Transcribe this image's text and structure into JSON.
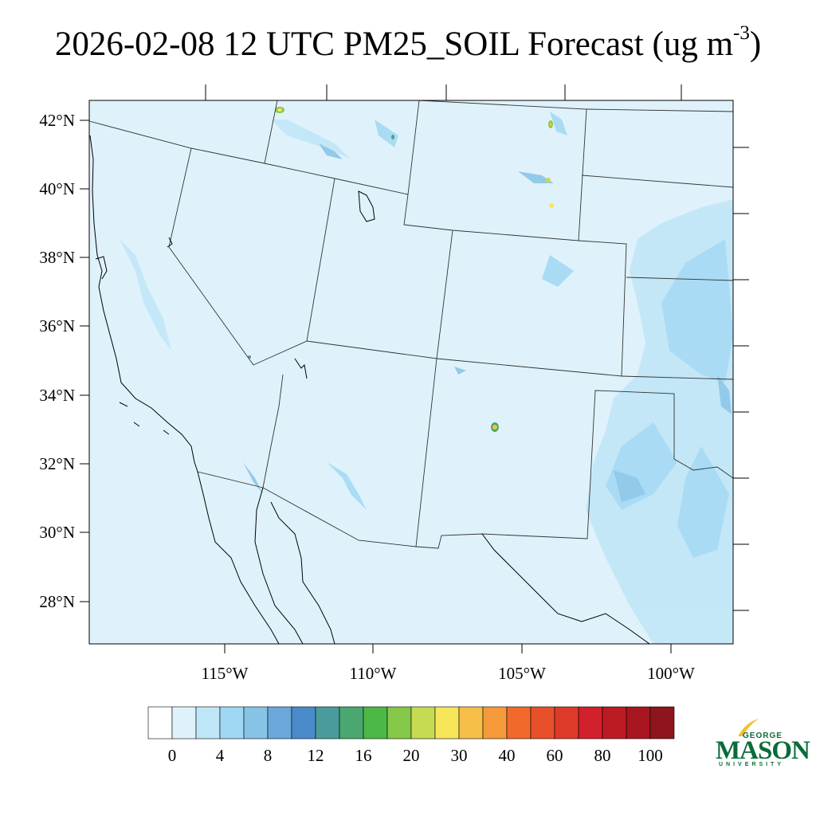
{
  "title": {
    "text": "2026-02-08 12 UTC PM25_SOIL Forecast (ug m",
    "sup": "-3",
    "close": ")"
  },
  "map": {
    "lat_labels": [
      "42°N",
      "40°N",
      "38°N",
      "36°N",
      "34°N",
      "32°N",
      "30°N",
      "28°N"
    ],
    "lon_labels": [
      "115°W",
      "110°W",
      "105°W",
      "100°W"
    ],
    "background_color": "#dff2fb",
    "boundary_color": "#333333",
    "coast_color": "#000000"
  },
  "colorbar": {
    "colors": [
      "#ffffff",
      "#dff2fb",
      "#bfe6f7",
      "#a0d8f3",
      "#86c3e6",
      "#6aa8dc",
      "#4a8bcc",
      "#4a9b9b",
      "#4aa76f",
      "#4cb845",
      "#86c84a",
      "#c6db52",
      "#f7e55a",
      "#f6bf48",
      "#f59a3a",
      "#f26a2b",
      "#e8502a",
      "#de3a2a",
      "#d2202c",
      "#bc1b24",
      "#a8161f",
      "#8f151c"
    ],
    "tick_labels": [
      "0",
      "4",
      "8",
      "12",
      "16",
      "20",
      "30",
      "40",
      "60",
      "80",
      "100"
    ]
  },
  "logo": {
    "line1": "GEORGE",
    "line2": "MASON",
    "line3": "UNIVERSITY",
    "color": "#0a6b3a",
    "accent_color": "#f2c12e"
  }
}
